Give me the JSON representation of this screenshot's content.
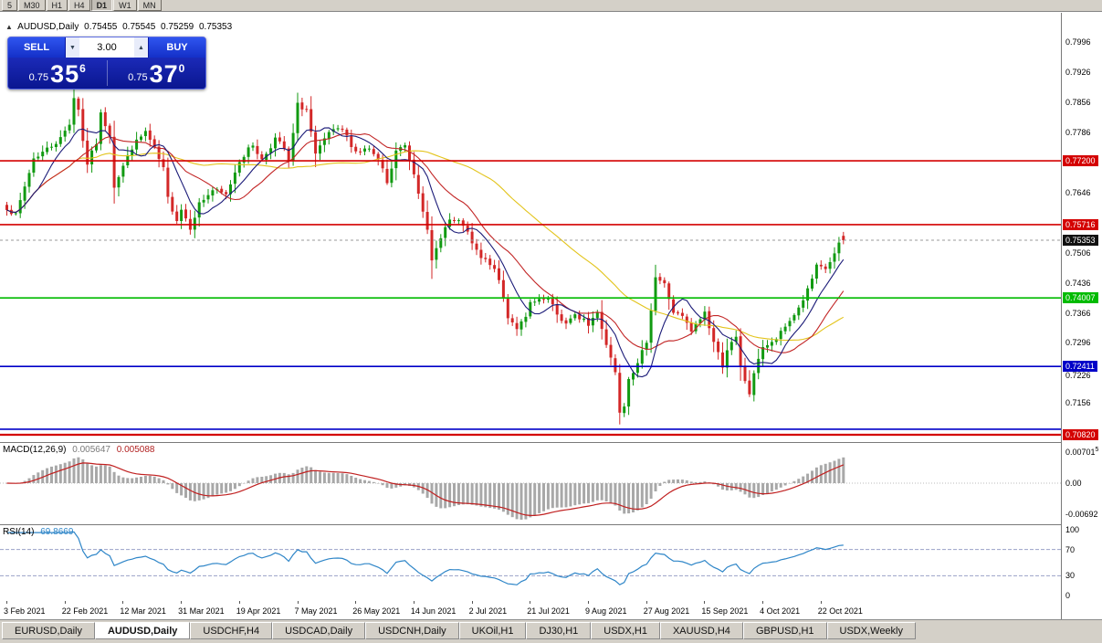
{
  "toolbar": {
    "periods": [
      {
        "label": "5",
        "active": false
      },
      {
        "label": "M30",
        "active": false
      },
      {
        "label": "H1",
        "active": false
      },
      {
        "label": "H4",
        "active": false
      },
      {
        "label": "D1",
        "active": true
      },
      {
        "label": "W1",
        "active": false
      },
      {
        "label": "MN",
        "active": false
      }
    ]
  },
  "chart": {
    "title": {
      "symbol_period": "AUDUSD,Daily",
      "open": "0.75455",
      "high": "0.75545",
      "low": "0.75259",
      "close": "0.75353"
    },
    "trade_panel": {
      "sell_label": "SELL",
      "buy_label": "BUY",
      "volume": "3.00",
      "sell_price": {
        "prefix": "0.75",
        "big": "35",
        "sup": "6"
      },
      "buy_price": {
        "prefix": "0.75",
        "big": "37",
        "sup": "0"
      }
    }
  },
  "icons": {
    "collapse": "▲",
    "volume_down": "▼",
    "volume_up": "▲"
  },
  "chart_data": {
    "type": "candlestick",
    "symbol": "AUDUSD",
    "timeframe": "Daily",
    "num_bars": 188,
    "last_ohlc": {
      "open": 0.75455,
      "high": 0.75545,
      "low": 0.75259,
      "close": 0.75353
    },
    "price_anchors": [
      [
        0,
        0.7612
      ],
      [
        2,
        0.7592
      ],
      [
        4,
        0.766
      ],
      [
        6,
        0.7726
      ],
      [
        9,
        0.7748
      ],
      [
        12,
        0.7772
      ],
      [
        14,
        0.7808
      ],
      [
        15,
        0.7868
      ],
      [
        16,
        0.7842
      ],
      [
        17,
        0.7766
      ],
      [
        18,
        0.7714
      ],
      [
        20,
        0.7762
      ],
      [
        21,
        0.7828
      ],
      [
        23,
        0.7782
      ],
      [
        24,
        0.7662
      ],
      [
        26,
        0.7708
      ],
      [
        28,
        0.7752
      ],
      [
        31,
        0.7788
      ],
      [
        33,
        0.7746
      ],
      [
        35,
        0.77
      ],
      [
        36,
        0.7632
      ],
      [
        38,
        0.7584
      ],
      [
        39,
        0.7608
      ],
      [
        41,
        0.7566
      ],
      [
        43,
        0.762
      ],
      [
        46,
        0.7652
      ],
      [
        49,
        0.764
      ],
      [
        52,
        0.7722
      ],
      [
        55,
        0.7758
      ],
      [
        57,
        0.7722
      ],
      [
        60,
        0.7772
      ],
      [
        62,
        0.7748
      ],
      [
        63,
        0.7716
      ],
      [
        65,
        0.785
      ],
      [
        67,
        0.784
      ],
      [
        69,
        0.7732
      ],
      [
        72,
        0.7786
      ],
      [
        75,
        0.7792
      ],
      [
        78,
        0.7742
      ],
      [
        81,
        0.7748
      ],
      [
        84,
        0.7702
      ],
      [
        85,
        0.7664
      ],
      [
        87,
        0.7742
      ],
      [
        89,
        0.7756
      ],
      [
        91,
        0.7692
      ],
      [
        93,
        0.7608
      ],
      [
        94,
        0.7554
      ],
      [
        95,
        0.7484
      ],
      [
        97,
        0.7546
      ],
      [
        99,
        0.7582
      ],
      [
        102,
        0.7572
      ],
      [
        104,
        0.7526
      ],
      [
        106,
        0.7492
      ],
      [
        108,
        0.7482
      ],
      [
        110,
        0.7442
      ],
      [
        112,
        0.7358
      ],
      [
        114,
        0.7332
      ],
      [
        116,
        0.7352
      ],
      [
        117,
        0.7388
      ],
      [
        119,
        0.7392
      ],
      [
        121,
        0.7398
      ],
      [
        123,
        0.7362
      ],
      [
        125,
        0.734
      ],
      [
        127,
        0.7358
      ],
      [
        129,
        0.7352
      ],
      [
        130,
        0.7336
      ],
      [
        132,
        0.7372
      ],
      [
        134,
        0.7292
      ],
      [
        136,
        0.7232
      ],
      [
        137,
        0.714
      ],
      [
        138,
        0.7152
      ],
      [
        139,
        0.7218
      ],
      [
        141,
        0.7244
      ],
      [
        143,
        0.7302
      ],
      [
        145,
        0.745
      ],
      [
        147,
        0.7432
      ],
      [
        149,
        0.7368
      ],
      [
        151,
        0.7356
      ],
      [
        153,
        0.7322
      ],
      [
        155,
        0.7352
      ],
      [
        156,
        0.7368
      ],
      [
        158,
        0.7298
      ],
      [
        160,
        0.7244
      ],
      [
        161,
        0.7282
      ],
      [
        163,
        0.7306
      ],
      [
        164,
        0.7238
      ],
      [
        166,
        0.7178
      ],
      [
        168,
        0.7262
      ],
      [
        169,
        0.7288
      ],
      [
        171,
        0.7294
      ],
      [
        173,
        0.7318
      ],
      [
        175,
        0.7348
      ],
      [
        177,
        0.7378
      ],
      [
        179,
        0.7418
      ],
      [
        181,
        0.7472
      ],
      [
        183,
        0.7468
      ],
      [
        185,
        0.7502
      ],
      [
        186,
        0.7524
      ],
      [
        187,
        0.75353
      ]
    ],
    "wick_overrides": [
      {
        "bar": 15,
        "high": 0.7892
      },
      {
        "bar": 65,
        "high": 0.7878
      },
      {
        "bar": 95,
        "low": 0.7445
      },
      {
        "bar": 137,
        "low": 0.7106
      },
      {
        "bar": 145,
        "high": 0.7478
      },
      {
        "bar": 166,
        "low": 0.717
      }
    ],
    "y_axis": {
      "top": 0.8065,
      "bottom": 0.7065,
      "ticks": [
        "0.7996",
        "0.7926",
        "0.7856",
        "0.7786",
        "0.7646",
        "0.7506",
        "0.7436",
        "0.7366",
        "0.7296",
        "0.7226",
        "0.7156"
      ]
    },
    "x_axis": {
      "labels": [
        {
          "bar": 0,
          "text": "3 Feb 2021"
        },
        {
          "bar": 13,
          "text": "22 Feb 2021"
        },
        {
          "bar": 26,
          "text": "12 Mar 2021"
        },
        {
          "bar": 39,
          "text": "31 Mar 2021"
        },
        {
          "bar": 52,
          "text": "19 Apr 2021"
        },
        {
          "bar": 65,
          "text": "7 May 2021"
        },
        {
          "bar": 78,
          "text": "26 May 2021"
        },
        {
          "bar": 91,
          "text": "14 Jun 2021"
        },
        {
          "bar": 104,
          "text": "2 Jul 2021"
        },
        {
          "bar": 117,
          "text": "21 Jul 2021"
        },
        {
          "bar": 130,
          "text": "9 Aug 2021"
        },
        {
          "bar": 143,
          "text": "27 Aug 2021"
        },
        {
          "bar": 156,
          "text": "15 Sep 2021"
        },
        {
          "bar": 169,
          "text": "4 Oct 2021"
        },
        {
          "bar": 182,
          "text": "22 Oct 2021"
        }
      ]
    },
    "levels": [
      {
        "price": 0.772,
        "label": "0.77200",
        "color": "#d40000",
        "width": 1.6
      },
      {
        "price": 0.75716,
        "label": "0.75716",
        "color": "#d40000",
        "width": 1.6
      },
      {
        "price": 0.74007,
        "label": "0.74007",
        "color": "#00bb00",
        "width": 1.6
      },
      {
        "price": 0.72411,
        "label": "0.72411",
        "color": "#0000c8",
        "width": 1.6
      },
      {
        "price": 0.7095,
        "label": "",
        "color": "#0000c8",
        "width": 1.6
      },
      {
        "price": 0.7082,
        "label": "0.70820",
        "color": "#d40000",
        "width": 2.2
      }
    ],
    "current_price": {
      "value": 0.75353,
      "label": "0.75353",
      "badge_color": "#111111"
    },
    "moving_averages": [
      {
        "period": 45,
        "color": "#e3c41c",
        "name": "ma-slow-yellow"
      },
      {
        "period": 17,
        "color": "#c22525",
        "name": "ma-mid-red"
      },
      {
        "period": 8,
        "color": "#1b1b78",
        "name": "ma-fast-navy"
      }
    ],
    "candle_colors": {
      "up": "#119a11",
      "down": "#d32727"
    },
    "macd": {
      "name": "MACD(12,26,9)",
      "value_main": "0.005647",
      "value_signal": "0.005088",
      "fast": 12,
      "slow": 26,
      "signal": 9,
      "bar_color": "#a8a8a8",
      "signal_color": "#c02020",
      "axis_labels": [
        {
          "text": "0.00701",
          "sup": "5",
          "value": 0.007015
        },
        {
          "text": "0.00",
          "sup": "",
          "value": 0
        },
        {
          "text": "-0.00692",
          "sup": "",
          "value": -0.00692
        }
      ]
    },
    "rsi": {
      "name": "RSI(14)",
      "value": "69.8669",
      "period": 14,
      "color": "#2f86c8",
      "axis_labels": [
        {
          "text": "100",
          "value": 100
        },
        {
          "text": "70",
          "value": 70
        },
        {
          "text": "30",
          "value": 30
        },
        {
          "text": "0",
          "value": 0
        }
      ],
      "level_lines": [
        70,
        30
      ]
    }
  },
  "tabs": [
    {
      "label": "EURUSD,Daily",
      "active": false
    },
    {
      "label": "AUDUSD,Daily",
      "active": true
    },
    {
      "label": "USDCHF,H4",
      "active": false
    },
    {
      "label": "USDCAD,Daily",
      "active": false
    },
    {
      "label": "USDCNH,Daily",
      "active": false
    },
    {
      "label": "UKOil,H1",
      "active": false
    },
    {
      "label": "DJ30,H1",
      "active": false
    },
    {
      "label": "USDX,H1",
      "active": false
    },
    {
      "label": "XAUUSD,H4",
      "active": false
    },
    {
      "label": "GBPUSD,H1",
      "active": false
    },
    {
      "label": "USDX,Weekly",
      "active": false
    }
  ]
}
